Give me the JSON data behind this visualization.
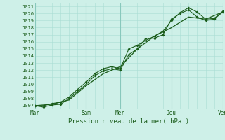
{
  "title": "Pression niveau de la mer( hPa )",
  "bg_color": "#cef0e8",
  "grid_color_minor": "#aaddd4",
  "grid_color_major": "#88c8bc",
  "line_color": "#1a5c1a",
  "tick_label_color": "#1a5c1a",
  "ylim": [
    1006.5,
    1021.5
  ],
  "yticks": [
    1007,
    1008,
    1009,
    1010,
    1011,
    1012,
    1013,
    1014,
    1015,
    1016,
    1017,
    1018,
    1019,
    1020,
    1021
  ],
  "xtick_labels": [
    "Mar",
    "Sam",
    "Mer",
    "Jeu",
    "Ven"
  ],
  "xtick_positions": [
    0,
    36,
    60,
    96,
    132
  ],
  "x_total": 132,
  "series1_x": [
    0,
    6,
    12,
    18,
    24,
    30,
    36,
    42,
    48,
    54,
    60,
    66,
    72,
    78,
    84,
    90,
    96,
    102,
    108,
    114,
    120,
    126,
    132
  ],
  "series1_y": [
    1007.0,
    1006.8,
    1007.1,
    1007.2,
    1008.0,
    1009.0,
    1010.0,
    1011.2,
    1011.9,
    1012.2,
    1012.0,
    1014.2,
    1015.0,
    1016.5,
    1016.5,
    1017.0,
    1019.2,
    1020.0,
    1020.5,
    1019.5,
    1019.0,
    1019.2,
    1020.2
  ],
  "series2_x": [
    0,
    6,
    12,
    18,
    24,
    30,
    36,
    42,
    48,
    54,
    60,
    66,
    72,
    78,
    84,
    90,
    96,
    102,
    108,
    114,
    120,
    126,
    132
  ],
  "series2_y": [
    1007.0,
    1007.0,
    1007.3,
    1007.5,
    1008.2,
    1009.3,
    1010.3,
    1011.5,
    1012.2,
    1012.5,
    1012.2,
    1015.0,
    1015.5,
    1016.2,
    1016.8,
    1017.5,
    1019.0,
    1020.1,
    1020.8,
    1020.2,
    1019.2,
    1019.3,
    1020.3
  ],
  "series3_x": [
    0,
    12,
    24,
    36,
    48,
    60,
    72,
    84,
    96,
    108,
    120,
    132
  ],
  "series3_y": [
    1007.0,
    1007.2,
    1007.8,
    1009.8,
    1011.5,
    1012.5,
    1015.0,
    1016.8,
    1018.0,
    1019.5,
    1019.2,
    1020.2
  ]
}
